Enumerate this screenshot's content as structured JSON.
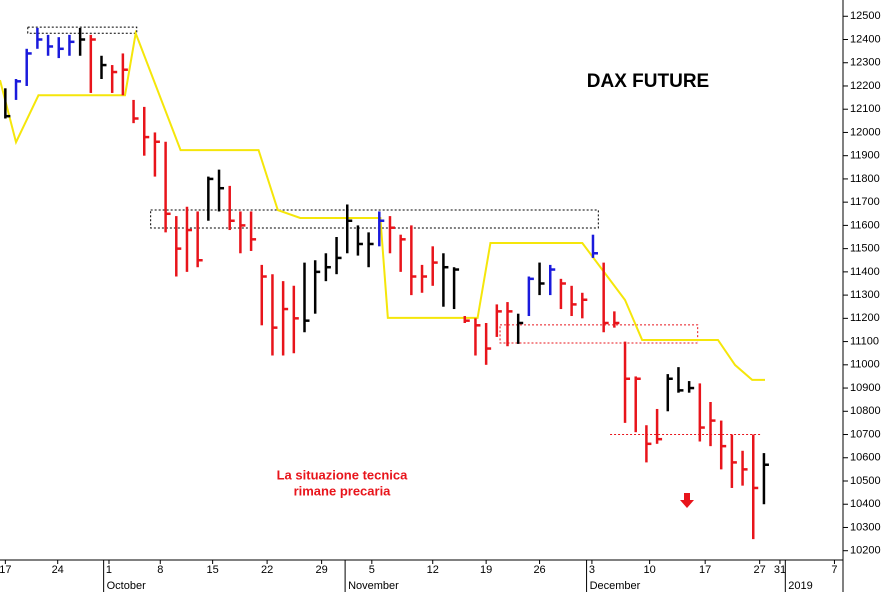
{
  "chart_data": {
    "type": "ohlc",
    "title": "DAX FUTURE",
    "annotation": [
      "La situazione tecnica",
      "rimane precaria"
    ],
    "xlim": [
      -0.5,
      78.4
    ],
    "ylim": [
      10160,
      12570
    ],
    "yticks": [
      10200,
      10300,
      10400,
      10500,
      10600,
      10700,
      10800,
      10900,
      11000,
      11100,
      11200,
      11300,
      11400,
      11500,
      11600,
      11700,
      11800,
      11900,
      12000,
      12100,
      12200,
      12300,
      12400,
      12500
    ],
    "xticks": [
      {
        "value": 0,
        "label": "17"
      },
      {
        "value": 4.9,
        "label": "24"
      },
      {
        "value": 9.7,
        "label": "1"
      },
      {
        "value": 14.5,
        "label": "8"
      },
      {
        "value": 19.4,
        "label": "15"
      },
      {
        "value": 24.5,
        "label": "22"
      },
      {
        "value": 29.6,
        "label": "29"
      },
      {
        "value": 34.3,
        "label": "5"
      },
      {
        "value": 40,
        "label": "12"
      },
      {
        "value": 45,
        "label": "19"
      },
      {
        "value": 50,
        "label": "26"
      },
      {
        "value": 54.9,
        "label": "3"
      },
      {
        "value": 60.3,
        "label": "10"
      },
      {
        "value": 65.5,
        "label": "17"
      },
      {
        "value": 70.6,
        "label": "27"
      },
      {
        "value": 72.5,
        "label": "31"
      },
      {
        "value": 77.6,
        "label": "7"
      }
    ],
    "months": [
      {
        "value": 9.2,
        "label": "October"
      },
      {
        "value": 31.8,
        "label": "November"
      },
      {
        "value": 54.4,
        "label": "December"
      },
      {
        "value": 73,
        "label": "2019"
      }
    ],
    "x": [
      0,
      1,
      2,
      3,
      4,
      5,
      6,
      7,
      8,
      9,
      10,
      11,
      12,
      13,
      14,
      15,
      16,
      17,
      18,
      19,
      20,
      21,
      22,
      23,
      24,
      25,
      26,
      27,
      28,
      29,
      30,
      31,
      32,
      33,
      34,
      35,
      36,
      37,
      38,
      39,
      40,
      41,
      42,
      43,
      44,
      45,
      46,
      47,
      48,
      49,
      50,
      51,
      52,
      53,
      54,
      55,
      56,
      57,
      58,
      59,
      60,
      61,
      62,
      63,
      64,
      65,
      66,
      67,
      68,
      69,
      70,
      71
    ],
    "high": [
      12190,
      12230,
      12360,
      12450,
      12420,
      12410,
      12420,
      12450,
      12420,
      12330,
      12290,
      12340,
      12140,
      12110,
      12000,
      11960,
      11640,
      11680,
      11660,
      11810,
      11840,
      11770,
      11660,
      11660,
      11430,
      11390,
      11360,
      11340,
      11440,
      11450,
      11480,
      11550,
      11690,
      11600,
      11570,
      11660,
      11640,
      11560,
      11600,
      11430,
      11510,
      11480,
      11420,
      11210,
      11200,
      11180,
      11260,
      11270,
      11220,
      11380,
      11440,
      11430,
      11370,
      11340,
      11310,
      11560,
      11440,
      11230,
      11100,
      10950,
      10740,
      10810,
      10960,
      10990,
      10930,
      10920,
      10840,
      10760,
      10700,
      10630,
      10700,
      10620
    ],
    "low": [
      12060,
      12140,
      12200,
      12360,
      12330,
      12320,
      12330,
      12330,
      12170,
      12230,
      12170,
      12160,
      12040,
      11900,
      11810,
      11570,
      11380,
      11400,
      11420,
      11620,
      11660,
      11580,
      11480,
      11490,
      11170,
      11040,
      11040,
      11050,
      11140,
      11220,
      11360,
      11390,
      11480,
      11470,
      11420,
      11510,
      11480,
      11400,
      11300,
      11310,
      11340,
      11250,
      11240,
      11180,
      11040,
      11000,
      11120,
      11080,
      11090,
      11210,
      11300,
      11300,
      11240,
      11210,
      11200,
      11460,
      11140,
      11160,
      10750,
      10710,
      10580,
      10660,
      10800,
      10880,
      10880,
      10670,
      10650,
      10550,
      10470,
      10480,
      10250,
      10400
    ],
    "close": [
      12070,
      12220,
      12340,
      12400,
      12370,
      12360,
      12390,
      12400,
      12400,
      12290,
      12260,
      12270,
      12060,
      11980,
      11960,
      11650,
      11500,
      11580,
      11450,
      11800,
      11760,
      11620,
      11600,
      11540,
      11380,
      11160,
      11240,
      11200,
      11190,
      11400,
      11420,
      11460,
      11620,
      11520,
      11520,
      11620,
      11590,
      11540,
      11380,
      11380,
      11440,
      11420,
      11410,
      11190,
      11170,
      11070,
      11230,
      11230,
      11180,
      11370,
      11350,
      11410,
      11350,
      11260,
      11280,
      11480,
      11180,
      11180,
      10940,
      10940,
      10660,
      10680,
      10940,
      10890,
      10900,
      10730,
      10760,
      10650,
      10580,
      10550,
      10470,
      10570
    ],
    "colors": [
      "#000000",
      "#1a1adc",
      "#1a1adc",
      "#1a1adc",
      "#1a1adc",
      "#1a1adc",
      "#1a1adc",
      "#000000",
      "#e8141b",
      "#000000",
      "#e8141b",
      "#e8141b",
      "#e8141b",
      "#e8141b",
      "#e8141b",
      "#e8141b",
      "#e8141b",
      "#e8141b",
      "#e8141b",
      "#000000",
      "#000000",
      "#e8141b",
      "#e8141b",
      "#e8141b",
      "#e8141b",
      "#e8141b",
      "#e8141b",
      "#e8141b",
      "#000000",
      "#000000",
      "#000000",
      "#000000",
      "#000000",
      "#000000",
      "#000000",
      "#1a1adc",
      "#e8141b",
      "#e8141b",
      "#e8141b",
      "#e8141b",
      "#e8141b",
      "#000000",
      "#000000",
      "#e8141b",
      "#e8141b",
      "#e8141b",
      "#e8141b",
      "#e8141b",
      "#000000",
      "#1a1adc",
      "#000000",
      "#1a1adc",
      "#e8141b",
      "#e8141b",
      "#e8141b",
      "#1a1adc",
      "#e8141b",
      "#e8141b",
      "#e8141b",
      "#e8141b",
      "#e8141b",
      "#e8141b",
      "#000000",
      "#000000",
      "#000000",
      "#e8141b",
      "#e8141b",
      "#e8141b",
      "#e8141b",
      "#e8141b",
      "#e8141b",
      "#000000"
    ],
    "stop_line": {
      "color": "#f5e60a",
      "x": [
        -0.5,
        1.0,
        3.1,
        11.2,
        12.2,
        16.4,
        23.7,
        25.5,
        27.6,
        35.1,
        35.8,
        44.2,
        45.4,
        54,
        58,
        59.6,
        66.7,
        68.3,
        69.9,
        71.1
      ],
      "values": [
        12225,
        11958,
        12160,
        12160,
        12427,
        11924,
        11924,
        11666,
        11632,
        11632,
        11202,
        11202,
        11524,
        11524,
        11279,
        11107,
        11107,
        10999,
        10935,
        10935
      ]
    },
    "zones": [
      {
        "x": [
          2.1,
          12.3
        ],
        "y": [
          12427,
          12453
        ],
        "color": "#000000"
      },
      {
        "x": [
          13.6,
          55.5
        ],
        "y": [
          11589,
          11666
        ],
        "color": "#000000"
      },
      {
        "x": [
          46.3,
          64.8
        ],
        "y": [
          11094,
          11172
        ],
        "color": "#e8141b"
      },
      {
        "x": [
          56.6,
          70.8
        ],
        "y": [
          10700,
          10700
        ],
        "color": "#e8141b"
      }
    ]
  }
}
